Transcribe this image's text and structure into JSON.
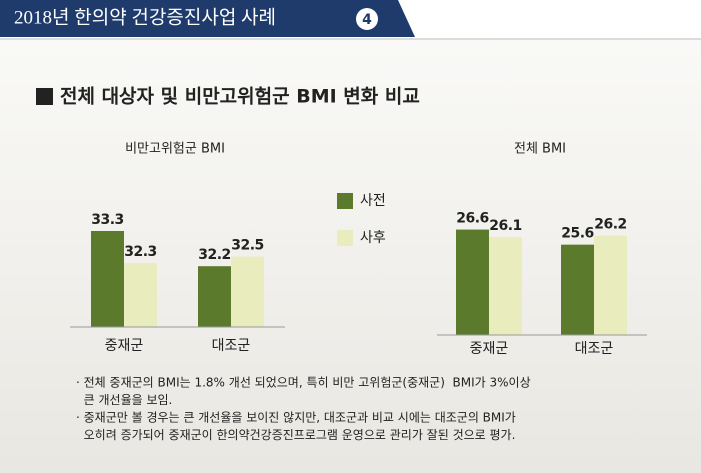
{
  "header": {
    "title": "2018년 한의약 건강증진사업 사례",
    "badge": "4"
  },
  "heading": "전체 대상자 및 비만고위험군 BMI 변화 비교",
  "chart_data": [
    {
      "type": "bar",
      "title": "비만고위험군 BMI",
      "categories": [
        "중재군",
        "대조군"
      ],
      "series": [
        {
          "name": "사전",
          "color": "#5b7a2c",
          "values": [
            33.3,
            32.2
          ]
        },
        {
          "name": "사후",
          "color": "#e9ecbd",
          "values": [
            32.3,
            32.5
          ]
        }
      ],
      "ylim": [
        30.3,
        34.3
      ]
    },
    {
      "type": "bar",
      "title": "전체 BMI",
      "categories": [
        "중재군",
        "대조군"
      ],
      "series": [
        {
          "name": "사전",
          "color": "#5b7a2c",
          "values": [
            26.6,
            25.6
          ]
        },
        {
          "name": "사후",
          "color": "#e9ecbd",
          "values": [
            26.1,
            26.2
          ]
        }
      ],
      "ylim": [
        19.6,
        28.1
      ]
    }
  ],
  "notes": [
    "· 전체 중재군의 BMI는 1.8% 개선 되었으며, 특히 비만 고위험군(중재군)  BMI가 3%이상",
    "  큰 개선율을 보임.",
    "· 중재군만 볼 경우는 큰 개선율을 보이진 않지만, 대조군과 비교 시에는 대조군의 BMI가",
    "  오히려 증가되어 중재군이 한의약건강증진프로그램 운영으로 관리가 잘된 것으로 평가."
  ]
}
